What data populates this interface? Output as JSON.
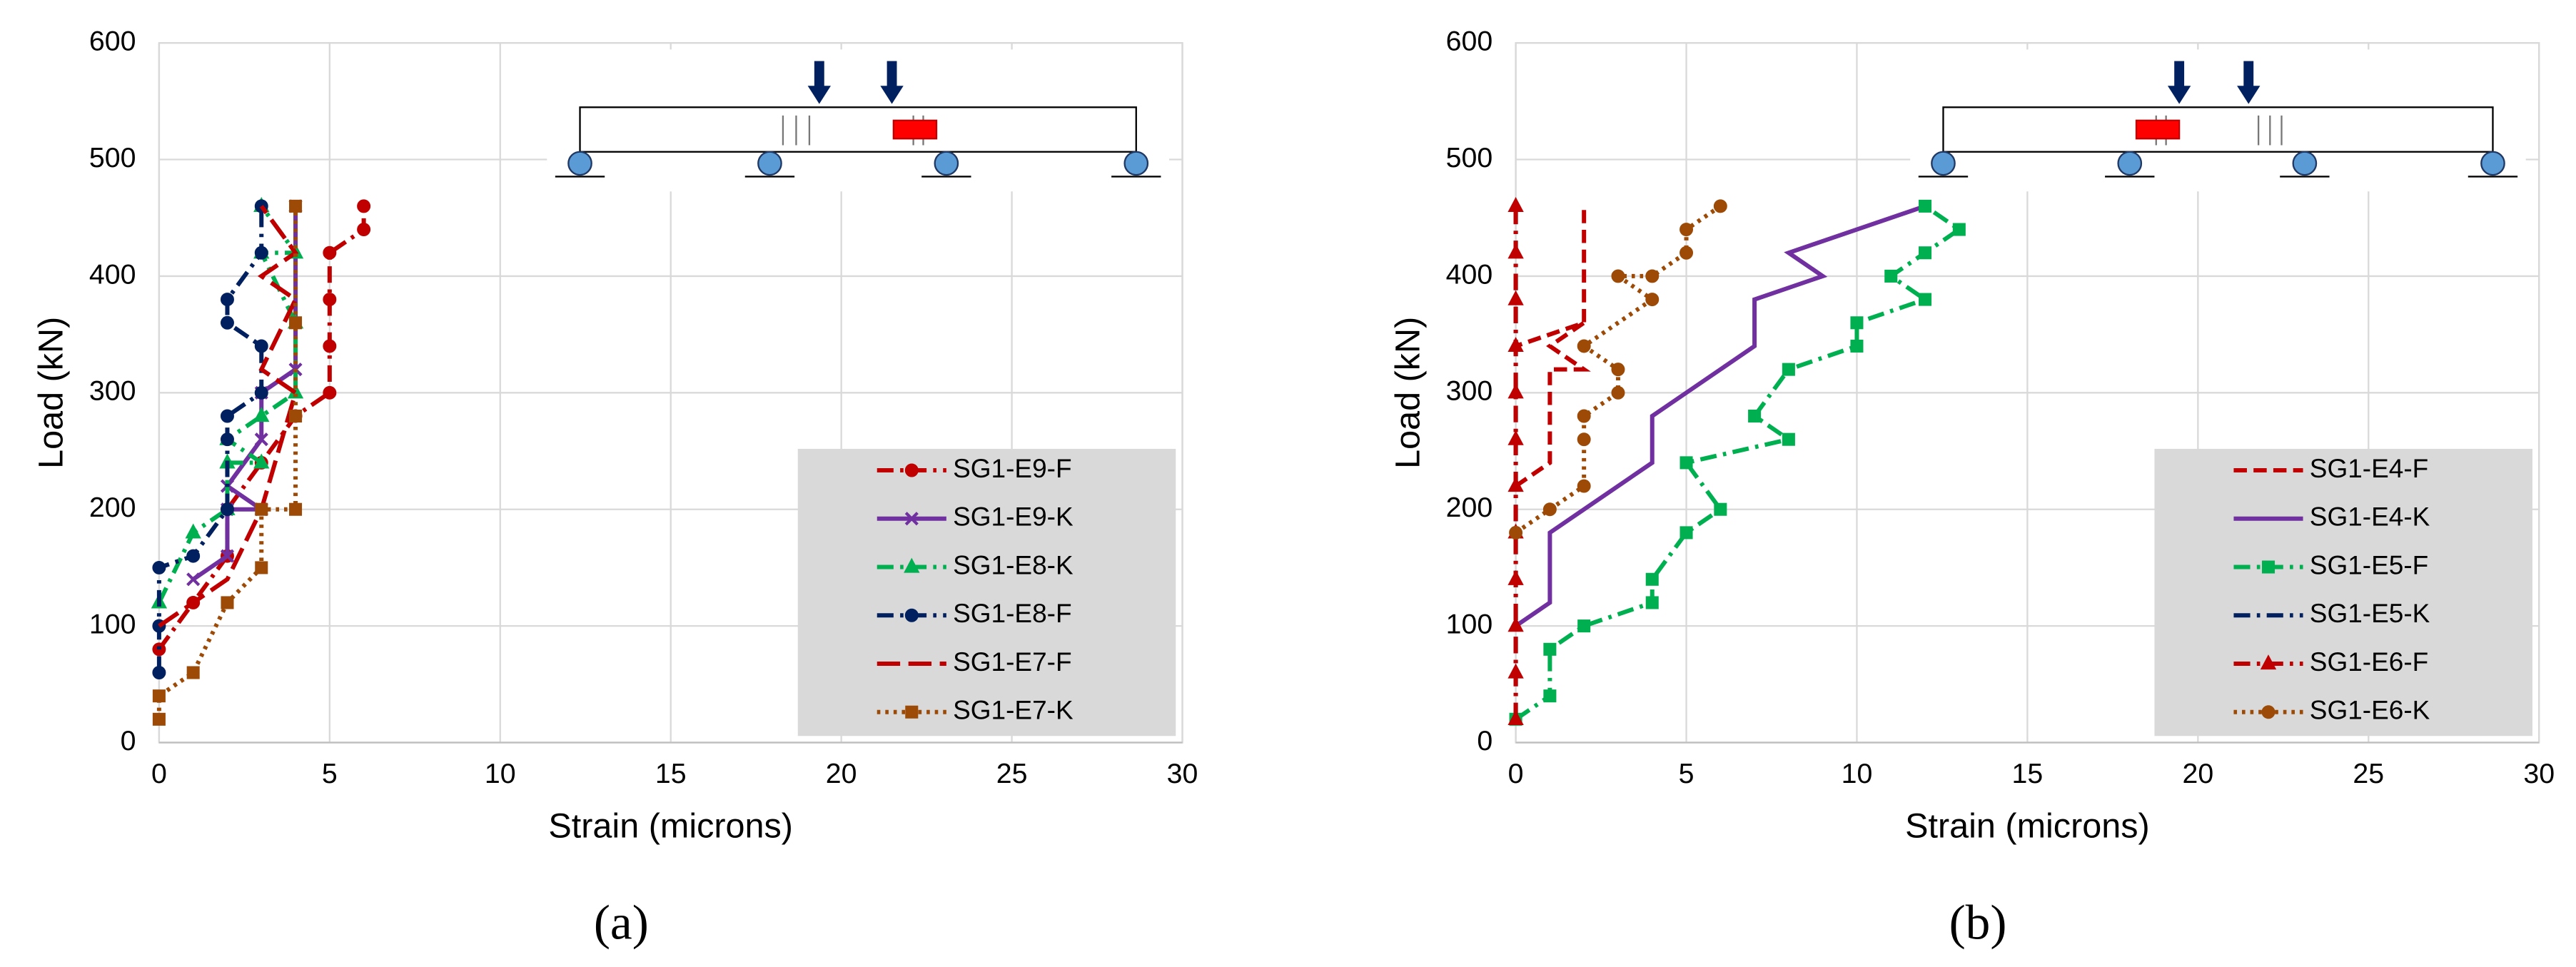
{
  "chart_data": [
    {
      "type": "line",
      "panel_label": "(a)",
      "xlabel": "Strain (microns)",
      "ylabel": "Load (kN)",
      "xlim": [
        0,
        30
      ],
      "ylim": [
        0,
        600
      ],
      "xticks": [
        0,
        5,
        10,
        15,
        20,
        25,
        30
      ],
      "yticks": [
        0,
        100,
        200,
        300,
        400,
        500,
        600
      ],
      "grid": true,
      "legend": "lower right",
      "series": [
        {
          "name": "SG1-E9-F",
          "color": "#c00000",
          "dash": "dashdot",
          "marker": "circle",
          "x": [
            0,
            1,
            2,
            2,
            3,
            4,
            5,
            5,
            5,
            5,
            6,
            6
          ],
          "values": [
            80,
            120,
            160,
            200,
            240,
            280,
            300,
            340,
            380,
            420,
            440,
            460
          ]
        },
        {
          "name": "SG1-E9-K",
          "color": "#7030a0",
          "dash": "solid",
          "marker": "x",
          "x": [
            1,
            2,
            2,
            3,
            2,
            3,
            3,
            4,
            4
          ],
          "values": [
            140,
            160,
            200,
            200,
            220,
            260,
            300,
            320,
            460
          ]
        },
        {
          "name": "SG1-E8-K",
          "color": "#00b050",
          "dash": "dashdot",
          "marker": "triangle",
          "x": [
            0,
            1,
            2,
            2,
            3,
            2,
            3,
            4,
            4,
            3,
            4,
            3
          ],
          "values": [
            120,
            180,
            200,
            240,
            240,
            260,
            280,
            300,
            360,
            420,
            420,
            460
          ]
        },
        {
          "name": "SG1-E8-F",
          "color": "#002060",
          "dash": "dashdot",
          "marker": "circle",
          "x": [
            0,
            0,
            0,
            1,
            2,
            2,
            2,
            3,
            3,
            2,
            2,
            3,
            3
          ],
          "values": [
            60,
            100,
            150,
            160,
            200,
            260,
            280,
            300,
            340,
            360,
            380,
            420,
            460
          ]
        },
        {
          "name": "SG1-E7-F",
          "color": "#c00000",
          "dash": "longdash",
          "marker": "none",
          "x": [
            0,
            1,
            2,
            3,
            4,
            3,
            4,
            3,
            4,
            3
          ],
          "values": [
            100,
            120,
            140,
            200,
            300,
            320,
            380,
            400,
            420,
            460
          ]
        },
        {
          "name": "SG1-E7-K",
          "color": "#9c4a06",
          "dash": "dotted",
          "marker": "square",
          "x": [
            0,
            0,
            1,
            2,
            3,
            3,
            4,
            4,
            4,
            4
          ],
          "values": [
            20,
            40,
            60,
            120,
            150,
            200,
            200,
            280,
            360,
            460
          ]
        }
      ]
    },
    {
      "type": "line",
      "panel_label": "(b)",
      "xlabel": "Strain (microns)",
      "ylabel": "Load (kN)",
      "xlim": [
        0,
        30
      ],
      "ylim": [
        0,
        600
      ],
      "xticks": [
        0,
        5,
        10,
        15,
        20,
        25,
        30
      ],
      "yticks": [
        0,
        100,
        200,
        300,
        400,
        500,
        600
      ],
      "grid": true,
      "legend": "lower right",
      "series": [
        {
          "name": "SG1-E4-F",
          "color": "#c00000",
          "dash": "dashed",
          "marker": "none",
          "x": [
            0,
            1,
            1,
            1,
            2,
            1,
            2,
            0,
            2,
            2,
            2
          ],
          "values": [
            220,
            240,
            300,
            320,
            320,
            340,
            360,
            340,
            360,
            420,
            460
          ]
        },
        {
          "name": "SG1-E4-K",
          "color": "#7030a0",
          "dash": "solid",
          "marker": "none",
          "x": [
            0,
            1,
            1,
            2,
            4,
            4,
            5,
            7,
            7,
            9,
            8,
            12
          ],
          "values": [
            100,
            120,
            180,
            200,
            240,
            280,
            300,
            340,
            380,
            400,
            420,
            460
          ]
        },
        {
          "name": "SG1-E5-F",
          "color": "#00b050",
          "dash": "dashdot",
          "marker": "square",
          "x": [
            0,
            1,
            1,
            2,
            4,
            4,
            5,
            6,
            5,
            8,
            7,
            8,
            10,
            10,
            12,
            11,
            12,
            13,
            12
          ],
          "values": [
            20,
            40,
            80,
            100,
            120,
            140,
            180,
            200,
            240,
            260,
            280,
            320,
            340,
            360,
            380,
            400,
            420,
            440,
            460
          ]
        },
        {
          "name": "SG1-E5-K",
          "color": "#002060",
          "dash": "dashdot",
          "marker": "none",
          "x": [
            0,
            0
          ],
          "values": [
            20,
            460
          ]
        },
        {
          "name": "SG1-E6-F",
          "color": "#c00000",
          "dash": "dashdot",
          "marker": "triangle",
          "x": [
            0,
            0,
            0,
            0,
            0,
            0,
            0,
            0,
            0,
            0,
            0,
            0
          ],
          "values": [
            20,
            60,
            100,
            140,
            180,
            220,
            260,
            300,
            340,
            380,
            420,
            460
          ]
        },
        {
          "name": "SG1-E6-K",
          "color": "#9c4a06",
          "dash": "dotted",
          "marker": "circle",
          "x": [
            0,
            1,
            2,
            2,
            2,
            3,
            3,
            2,
            4,
            3,
            4,
            5,
            5,
            6
          ],
          "values": [
            180,
            200,
            220,
            260,
            280,
            300,
            320,
            340,
            380,
            400,
            400,
            420,
            440,
            460
          ]
        }
      ]
    }
  ]
}
